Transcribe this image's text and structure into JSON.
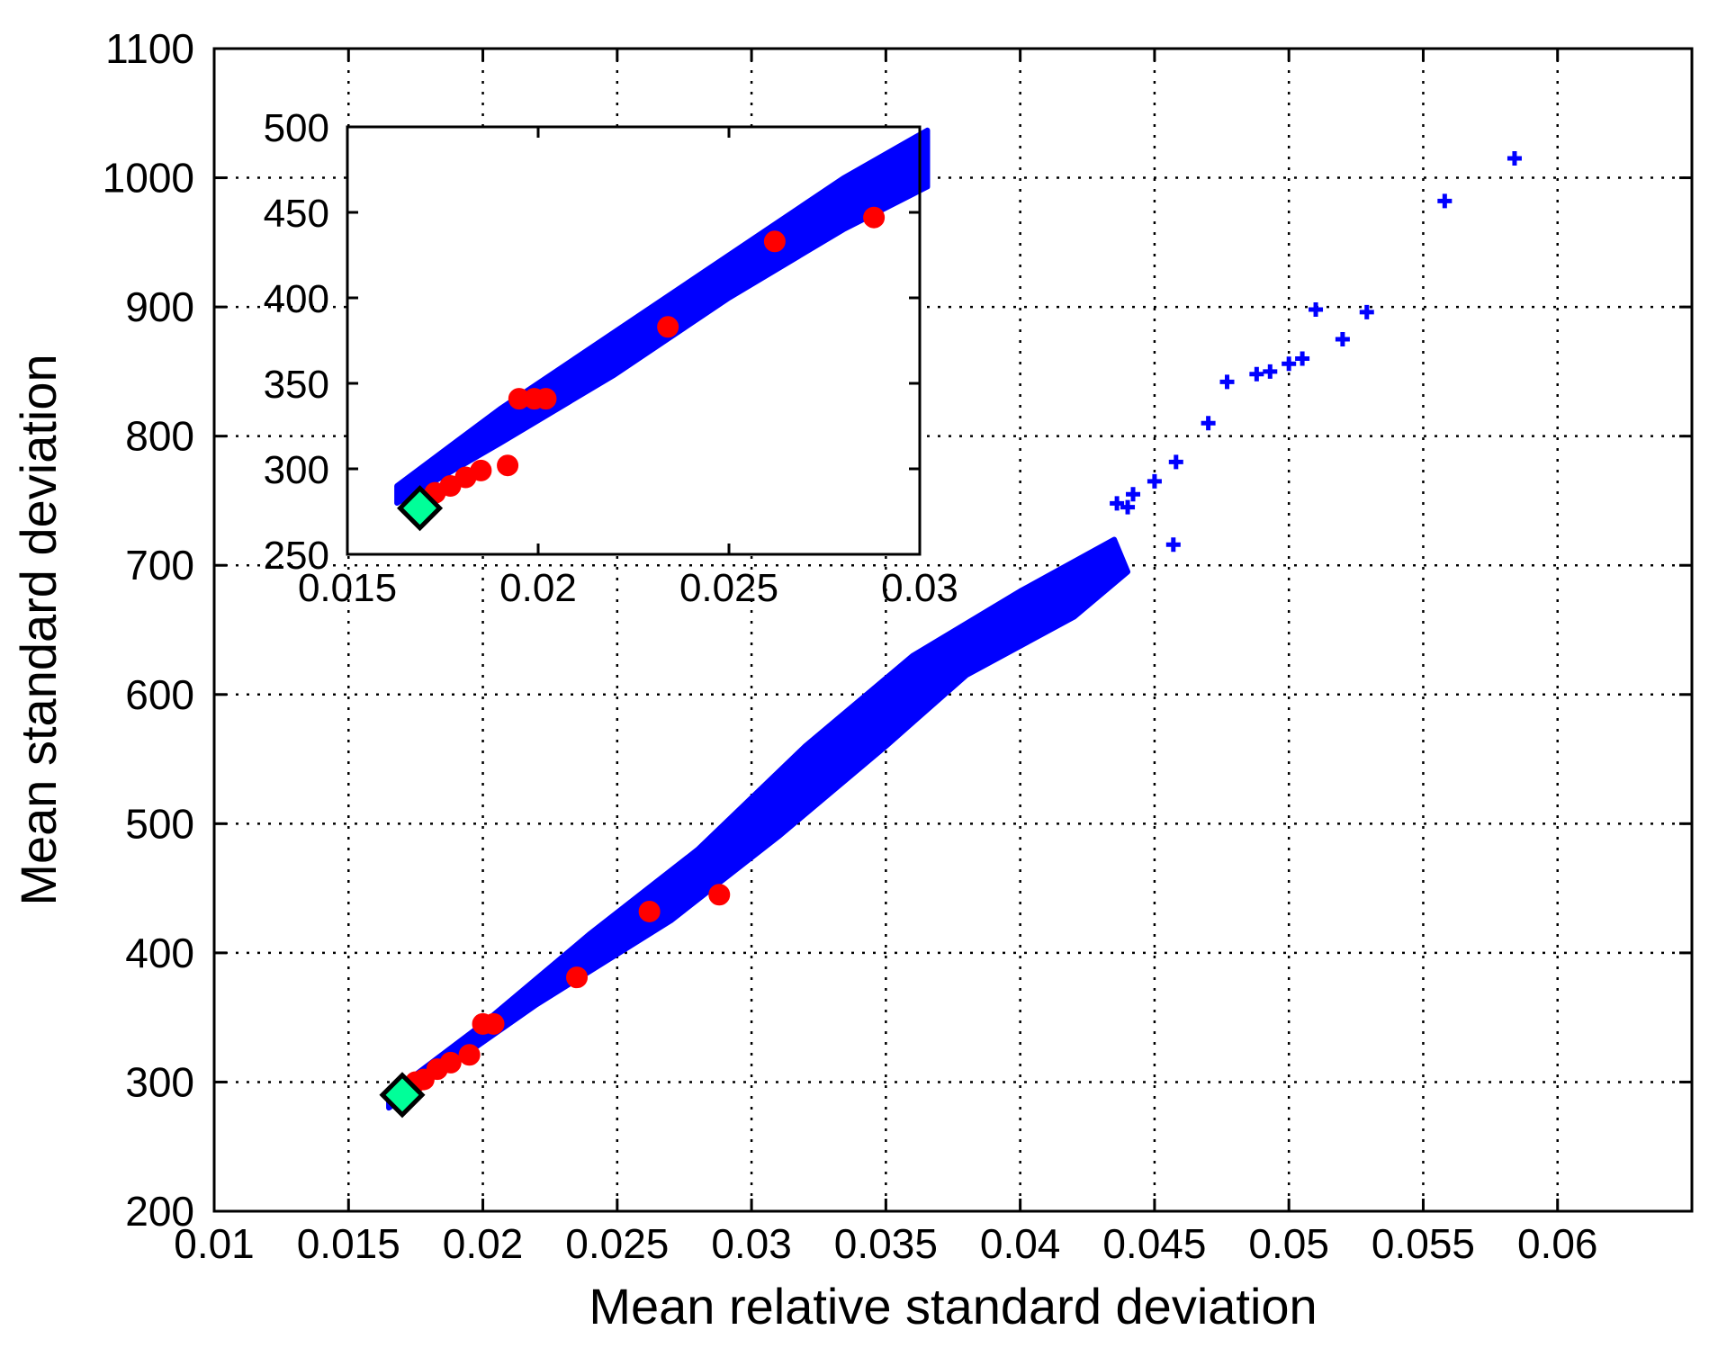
{
  "chart_data": [
    {
      "type": "scatter",
      "xlabel": "Mean relative standard deviation",
      "ylabel": "Mean standard deviation",
      "xlim": [
        0.01,
        0.065
      ],
      "ylim": [
        200,
        1100
      ],
      "xticks": [
        0.01,
        0.015,
        0.02,
        0.025,
        0.03,
        0.035,
        0.04,
        0.045,
        0.05,
        0.055,
        0.06
      ],
      "xtick_labels": [
        "0.01",
        "0.015",
        "0.02",
        "0.025",
        "0.03",
        "0.035",
        "0.04",
        "0.045",
        "0.05",
        "0.055",
        "0.06"
      ],
      "yticks": [
        200,
        300,
        400,
        500,
        600,
        700,
        800,
        900,
        1000,
        1100
      ],
      "ytick_labels": [
        "200",
        "300",
        "400",
        "500",
        "600",
        "700",
        "800",
        "900",
        "1000",
        "1100"
      ],
      "grid": true,
      "band": {
        "color": "#0000ff",
        "description_points": [
          [
            0.0165,
            285
          ],
          [
            0.025,
            430
          ],
          [
            0.03,
            510
          ],
          [
            0.035,
            600
          ],
          [
            0.04,
            670
          ],
          [
            0.043,
            710
          ]
        ],
        "lower_edge": [
          [
            0.0165,
            280
          ],
          [
            0.022,
            360
          ],
          [
            0.027,
            425
          ],
          [
            0.031,
            490
          ],
          [
            0.035,
            560
          ],
          [
            0.038,
            615
          ],
          [
            0.042,
            660
          ],
          [
            0.044,
            695
          ]
        ],
        "upper_edge": [
          [
            0.0165,
            290
          ],
          [
            0.02,
            345
          ],
          [
            0.024,
            415
          ],
          [
            0.028,
            480
          ],
          [
            0.032,
            560
          ],
          [
            0.036,
            630
          ],
          [
            0.04,
            680
          ],
          [
            0.0435,
            720
          ]
        ]
      },
      "series": [
        {
          "color": "#0000ff",
          "marker": "plus",
          "points": [
            [
              0.0584,
              1015
            ],
            [
              0.0558,
              982
            ],
            [
              0.051,
              898
            ],
            [
              0.0529,
              896
            ],
            [
              0.052,
              875
            ],
            [
              0.0477,
              842
            ],
            [
              0.0488,
              848
            ],
            [
              0.0493,
              850
            ],
            [
              0.05,
              856
            ],
            [
              0.0505,
              860
            ],
            [
              0.047,
              810
            ],
            [
              0.0458,
              780
            ],
            [
              0.045,
              765
            ],
            [
              0.0442,
              755
            ],
            [
              0.0436,
              748
            ],
            [
              0.0457,
              716
            ],
            [
              0.0437,
              700
            ],
            [
              0.0428,
              688
            ],
            [
              0.044,
              745
            ]
          ]
        },
        {
          "color": "#ff0000",
          "marker": "circle",
          "points": [
            [
              0.0288,
              445
            ],
            [
              0.0262,
              432
            ],
            [
              0.0235,
              381
            ],
            [
              0.02,
              345
            ],
            [
              0.0204,
              345
            ],
            [
              0.0195,
              321
            ],
            [
              0.0188,
              315
            ],
            [
              0.0183,
              310
            ],
            [
              0.0178,
              302
            ],
            [
              0.0175,
              300
            ]
          ]
        },
        {
          "color": "#00ff99",
          "marker": "diamond",
          "points": [
            [
              0.017,
              290
            ]
          ]
        }
      ]
    },
    {
      "type": "scatter",
      "xlim": [
        0.015,
        0.03
      ],
      "ylim": [
        250,
        500
      ],
      "xticks": [
        0.015,
        0.02,
        0.025,
        0.03
      ],
      "xtick_labels": [
        "0.015",
        "0.02",
        "0.025",
        "0.03"
      ],
      "yticks": [
        250,
        300,
        350,
        400,
        450,
        500
      ],
      "ytick_labels": [
        "250",
        "300",
        "350",
        "400",
        "450",
        "500"
      ],
      "grid": false,
      "band": {
        "color": "#0000ff",
        "lower_edge": [
          [
            0.0163,
            280
          ],
          [
            0.019,
            315
          ],
          [
            0.022,
            355
          ],
          [
            0.025,
            400
          ],
          [
            0.028,
            440
          ],
          [
            0.0302,
            465
          ]
        ],
        "upper_edge": [
          [
            0.0163,
            290
          ],
          [
            0.019,
            335
          ],
          [
            0.022,
            380
          ],
          [
            0.025,
            425
          ],
          [
            0.028,
            470
          ],
          [
            0.0302,
            498
          ]
        ]
      },
      "series": [
        {
          "color": "#ff0000",
          "marker": "circle",
          "points": [
            [
              0.0288,
              447
            ],
            [
              0.0262,
              433
            ],
            [
              0.0234,
              383
            ],
            [
              0.0199,
              341
            ],
            [
              0.0195,
              341
            ],
            [
              0.0202,
              341
            ],
            [
              0.0192,
              302
            ],
            [
              0.0185,
              299
            ],
            [
              0.0181,
              295
            ],
            [
              0.0177,
              290
            ],
            [
              0.0173,
              286
            ]
          ]
        },
        {
          "color": "#00ff99",
          "marker": "diamond",
          "points": [
            [
              0.0169,
              277
            ]
          ]
        }
      ]
    }
  ]
}
